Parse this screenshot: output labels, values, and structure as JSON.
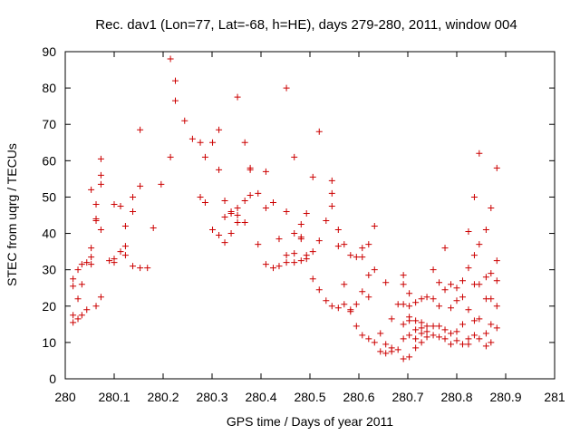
{
  "chart_data": {
    "type": "scatter",
    "title": "Rec. dav1 (Lon=77, Lat=-68, h=HE), days 279-280, 2011, window 004",
    "xlabel": "GPS time / Days of year 2011",
    "ylabel": "STEC from uqrg / TECUs",
    "xlim": [
      280,
      281
    ],
    "ylim": [
      0,
      90
    ],
    "xticks": [
      280,
      280.1,
      280.2,
      280.3,
      280.4,
      280.5,
      280.6,
      280.7,
      280.8,
      280.9,
      281
    ],
    "xtick_labels": [
      "280",
      "280.1",
      "280.2",
      "280.3",
      "280.4",
      "280.5",
      "280.6",
      "280.7",
      "280.8",
      "280.9",
      "281"
    ],
    "yticks": [
      0,
      10,
      20,
      30,
      40,
      50,
      60,
      70,
      80,
      90
    ],
    "ytick_labels": [
      "0",
      "10",
      "20",
      "30",
      "40",
      "50",
      "60",
      "70",
      "80",
      "90"
    ],
    "grid": false,
    "marker": "+",
    "color": "#cc0000",
    "series": [
      {
        "points": [
          [
            280.016,
            27.5
          ],
          [
            280.016,
            25.5
          ],
          [
            280.016,
            17.5
          ],
          [
            280.016,
            15.5
          ],
          [
            280.026,
            30.0
          ],
          [
            280.026,
            22.0
          ],
          [
            280.026,
            16.5
          ],
          [
            280.034,
            31.5
          ],
          [
            280.034,
            26.0
          ],
          [
            280.034,
            17.5
          ],
          [
            280.044,
            32.0
          ],
          [
            280.044,
            19.0
          ],
          [
            280.053,
            52.0
          ],
          [
            280.053,
            36.0
          ],
          [
            280.053,
            33.5
          ],
          [
            280.053,
            31.5
          ],
          [
            280.063,
            48.0
          ],
          [
            280.063,
            44.0
          ],
          [
            280.063,
            43.5
          ],
          [
            280.063,
            20.0
          ],
          [
            280.073,
            60.5
          ],
          [
            280.073,
            56.0
          ],
          [
            280.073,
            53.5
          ],
          [
            280.073,
            41.0
          ],
          [
            280.073,
            22.5
          ],
          [
            280.09,
            32.5
          ],
          [
            280.1,
            48.0
          ],
          [
            280.1,
            33.0
          ],
          [
            280.1,
            32.0
          ],
          [
            280.113,
            47.5
          ],
          [
            280.113,
            35.0
          ],
          [
            280.123,
            42.0
          ],
          [
            280.123,
            36.5
          ],
          [
            280.123,
            34.0
          ],
          [
            280.138,
            50.0
          ],
          [
            280.138,
            46.0
          ],
          [
            280.138,
            31.0
          ],
          [
            280.153,
            68.5
          ],
          [
            280.153,
            53.0
          ],
          [
            280.153,
            30.5
          ],
          [
            280.168,
            30.5
          ],
          [
            280.18,
            41.5
          ],
          [
            280.196,
            53.5
          ],
          [
            280.215,
            88.0
          ],
          [
            280.215,
            61.0
          ],
          [
            280.225,
            82.0
          ],
          [
            280.225,
            76.5
          ],
          [
            280.244,
            71.0
          ],
          [
            280.26,
            66.0
          ],
          [
            280.276,
            65.0
          ],
          [
            280.276,
            50.0
          ],
          [
            280.286,
            61.0
          ],
          [
            280.286,
            48.5
          ],
          [
            280.301,
            65.0
          ],
          [
            280.301,
            41.0
          ],
          [
            280.314,
            68.5
          ],
          [
            280.314,
            57.5
          ],
          [
            280.314,
            39.5
          ],
          [
            280.326,
            49.0
          ],
          [
            280.326,
            44.5
          ],
          [
            280.326,
            37.5
          ],
          [
            280.339,
            46.0
          ],
          [
            280.339,
            45.5
          ],
          [
            280.339,
            40.0
          ],
          [
            280.352,
            77.5
          ],
          [
            280.352,
            47.0
          ],
          [
            280.352,
            45.0
          ],
          [
            280.352,
            43.0
          ],
          [
            280.367,
            65.0
          ],
          [
            280.367,
            49.0
          ],
          [
            280.367,
            43.0
          ],
          [
            280.378,
            58.0
          ],
          [
            280.378,
            57.5
          ],
          [
            280.378,
            50.5
          ],
          [
            280.394,
            51.0
          ],
          [
            280.394,
            37.0
          ],
          [
            280.41,
            57.0
          ],
          [
            280.41,
            47.0
          ],
          [
            280.41,
            31.5
          ],
          [
            280.425,
            48.5
          ],
          [
            280.425,
            30.5
          ],
          [
            280.437,
            38.5
          ],
          [
            280.437,
            31.0
          ],
          [
            280.452,
            80.0
          ],
          [
            280.452,
            46.0
          ],
          [
            280.452,
            34.0
          ],
          [
            280.452,
            32.0
          ],
          [
            280.468,
            61.0
          ],
          [
            280.468,
            40.0
          ],
          [
            280.468,
            34.5
          ],
          [
            280.468,
            32.0
          ],
          [
            280.482,
            42.5
          ],
          [
            280.482,
            39.0
          ],
          [
            280.482,
            38.5
          ],
          [
            280.482,
            32.5
          ],
          [
            280.493,
            45.5
          ],
          [
            280.493,
            34.0
          ],
          [
            280.493,
            33.0
          ],
          [
            280.506,
            55.5
          ],
          [
            280.506,
            35.0
          ],
          [
            280.506,
            27.5
          ],
          [
            280.519,
            68.0
          ],
          [
            280.519,
            38.0
          ],
          [
            280.519,
            24.5
          ],
          [
            280.533,
            43.5
          ],
          [
            280.533,
            21.5
          ],
          [
            280.545,
            54.5
          ],
          [
            280.545,
            51.0
          ],
          [
            280.545,
            47.5
          ],
          [
            280.545,
            20.0
          ],
          [
            280.558,
            41.0
          ],
          [
            280.558,
            36.5
          ],
          [
            280.558,
            19.5
          ],
          [
            280.57,
            37.0
          ],
          [
            280.57,
            26.0
          ],
          [
            280.57,
            20.5
          ],
          [
            280.583,
            34.0
          ],
          [
            280.583,
            19.0
          ],
          [
            280.583,
            18.5
          ],
          [
            280.595,
            33.5
          ],
          [
            280.595,
            20.5
          ],
          [
            280.595,
            14.5
          ],
          [
            280.607,
            36.0
          ],
          [
            280.607,
            33.5
          ],
          [
            280.607,
            24.0
          ],
          [
            280.607,
            12.0
          ],
          [
            280.62,
            37.0
          ],
          [
            280.62,
            28.5
          ],
          [
            280.62,
            22.5
          ],
          [
            280.62,
            11.0
          ],
          [
            280.632,
            42.0
          ],
          [
            280.632,
            30.0
          ],
          [
            280.632,
            10.0
          ],
          [
            280.644,
            12.5
          ],
          [
            280.644,
            7.5
          ],
          [
            280.655,
            26.5
          ],
          [
            280.655,
            9.5
          ],
          [
            280.655,
            7.0
          ],
          [
            280.667,
            16.5
          ],
          [
            280.667,
            8.5
          ],
          [
            280.667,
            7.5
          ],
          [
            280.68,
            20.5
          ],
          [
            280.68,
            8.0
          ],
          [
            280.691,
            28.5
          ],
          [
            280.691,
            26.0
          ],
          [
            280.691,
            20.5
          ],
          [
            280.691,
            15.0
          ],
          [
            280.691,
            11.0
          ],
          [
            280.691,
            5.5
          ],
          [
            280.703,
            23.5
          ],
          [
            280.703,
            20.0
          ],
          [
            280.703,
            17.0
          ],
          [
            280.703,
            16.0
          ],
          [
            280.703,
            12.0
          ],
          [
            280.703,
            6.0
          ],
          [
            280.716,
            21.0
          ],
          [
            280.716,
            16.0
          ],
          [
            280.716,
            13.5
          ],
          [
            280.716,
            11.0
          ],
          [
            280.716,
            8.5
          ],
          [
            280.728,
            22.0
          ],
          [
            280.728,
            15.5
          ],
          [
            280.728,
            14.0
          ],
          [
            280.728,
            12.5
          ],
          [
            280.728,
            10.0
          ],
          [
            280.739,
            22.5
          ],
          [
            280.739,
            14.5
          ],
          [
            280.739,
            13.0
          ],
          [
            280.739,
            11.5
          ],
          [
            280.752,
            30.0
          ],
          [
            280.752,
            22.0
          ],
          [
            280.752,
            14.5
          ],
          [
            280.752,
            12.0
          ],
          [
            280.764,
            26.5
          ],
          [
            280.764,
            20.0
          ],
          [
            280.764,
            14.5
          ],
          [
            280.764,
            11.5
          ],
          [
            280.776,
            36.0
          ],
          [
            280.776,
            24.5
          ],
          [
            280.776,
            13.5
          ],
          [
            280.776,
            11.0
          ],
          [
            280.788,
            26.0
          ],
          [
            280.788,
            19.5
          ],
          [
            280.788,
            12.5
          ],
          [
            280.788,
            9.5
          ],
          [
            280.8,
            25.0
          ],
          [
            280.8,
            21.5
          ],
          [
            280.8,
            13.0
          ],
          [
            280.8,
            10.5
          ],
          [
            280.812,
            27.0
          ],
          [
            280.812,
            22.5
          ],
          [
            280.812,
            15.0
          ],
          [
            280.812,
            9.5
          ],
          [
            280.824,
            40.5
          ],
          [
            280.824,
            30.5
          ],
          [
            280.824,
            19.0
          ],
          [
            280.824,
            11.0
          ],
          [
            280.824,
            9.5
          ],
          [
            280.836,
            50.0
          ],
          [
            280.836,
            34.0
          ],
          [
            280.836,
            26.0
          ],
          [
            280.836,
            16.0
          ],
          [
            280.836,
            12.0
          ],
          [
            280.846,
            62.0
          ],
          [
            280.846,
            37.0
          ],
          [
            280.846,
            26.0
          ],
          [
            280.846,
            16.5
          ],
          [
            280.846,
            11.0
          ],
          [
            280.86,
            41.0
          ],
          [
            280.86,
            28.0
          ],
          [
            280.86,
            22.0
          ],
          [
            280.86,
            12.5
          ],
          [
            280.86,
            9.0
          ],
          [
            280.87,
            47.0
          ],
          [
            280.87,
            29.0
          ],
          [
            280.87,
            22.0
          ],
          [
            280.87,
            15.0
          ],
          [
            280.87,
            10.0
          ],
          [
            280.882,
            58.0
          ],
          [
            280.882,
            32.5
          ],
          [
            280.882,
            27.0
          ],
          [
            280.882,
            20.0
          ],
          [
            280.882,
            14.0
          ]
        ]
      }
    ]
  }
}
